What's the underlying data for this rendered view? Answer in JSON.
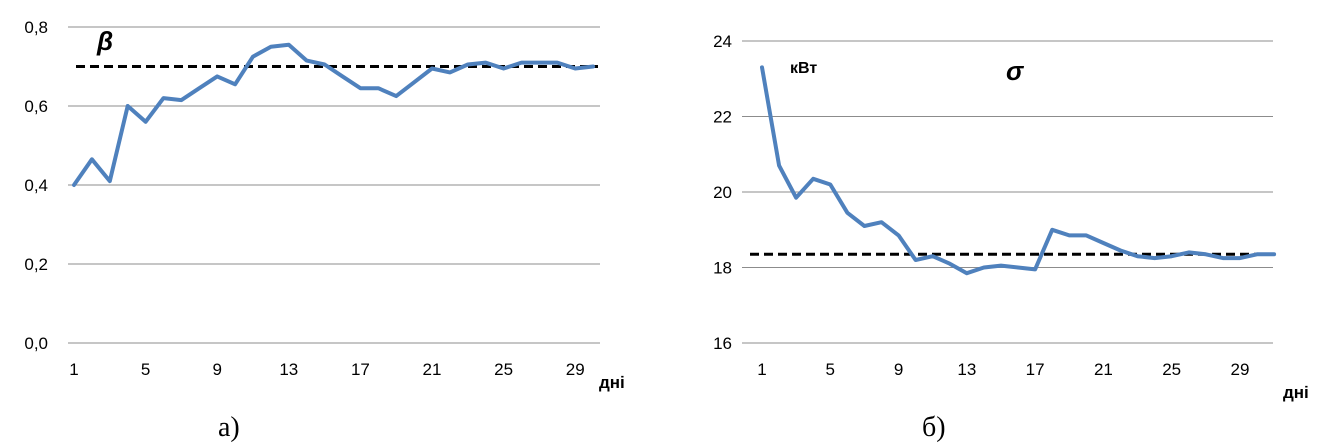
{
  "chart_data": [
    {
      "type": "line",
      "caption": "а)",
      "symbol": "β",
      "unit": "",
      "xlabel": "дні",
      "x": [
        1,
        2,
        3,
        4,
        5,
        6,
        7,
        8,
        9,
        10,
        11,
        12,
        13,
        14,
        15,
        16,
        17,
        18,
        19,
        20,
        21,
        22,
        23,
        24,
        25,
        26,
        27,
        28,
        29,
        30
      ],
      "xticks": [
        1,
        5,
        9,
        13,
        17,
        21,
        25,
        29
      ],
      "yticks": [
        "0,0",
        "0,2",
        "0,4",
        "0,6",
        "0,8"
      ],
      "ylim": [
        0,
        0.8
      ],
      "grid": true,
      "series": [
        {
          "values": [
            0.4,
            0.465,
            0.41,
            0.6,
            0.56,
            0.62,
            0.615,
            0.645,
            0.675,
            0.655,
            0.725,
            0.75,
            0.755,
            0.715,
            0.705,
            0.675,
            0.645,
            0.645,
            0.625,
            0.66,
            0.695,
            0.685,
            0.705,
            0.71,
            0.695,
            0.71,
            0.71,
            0.71,
            0.695,
            0.7
          ],
          "color": "#4F81BD",
          "style": "solid"
        }
      ],
      "reference_line": {
        "value": 0.7,
        "color": "#000000",
        "style": "dashed"
      }
    },
    {
      "type": "line",
      "caption": "б)",
      "symbol": "σ",
      "unit": "кВт",
      "xlabel": "дні",
      "x": [
        1,
        2,
        3,
        4,
        5,
        6,
        7,
        8,
        9,
        10,
        11,
        12,
        13,
        14,
        15,
        16,
        17,
        18,
        19,
        20,
        21,
        22,
        23,
        24,
        25,
        26,
        27,
        28,
        29,
        30,
        31
      ],
      "xticks": [
        1,
        5,
        9,
        13,
        17,
        21,
        25,
        29
      ],
      "yticks": [
        "16",
        "18",
        "20",
        "22",
        "24"
      ],
      "ylim": [
        16,
        24
      ],
      "grid": true,
      "series": [
        {
          "values": [
            23.3,
            20.7,
            19.85,
            20.35,
            20.2,
            19.45,
            19.1,
            19.2,
            18.85,
            18.2,
            18.3,
            18.1,
            17.85,
            18.0,
            18.05,
            18.0,
            17.95,
            19.0,
            18.85,
            18.85,
            18.65,
            18.45,
            18.3,
            18.25,
            18.3,
            18.4,
            18.35,
            18.25,
            18.25,
            18.35,
            18.35
          ],
          "color": "#4F81BD",
          "style": "solid"
        }
      ],
      "reference_line": {
        "value": 18.35,
        "color": "#000000",
        "style": "dashed"
      }
    }
  ]
}
